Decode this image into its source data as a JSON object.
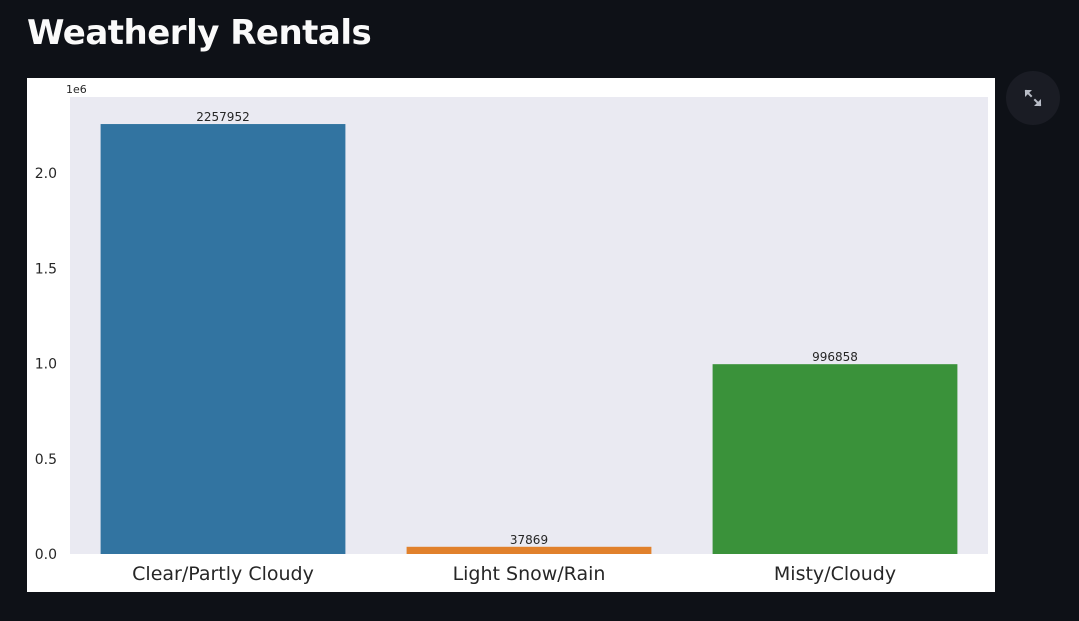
{
  "app": {
    "title": "Weatherly Rentals"
  },
  "toolbar": {
    "expand_icon": "fullscreen-expand-icon"
  },
  "chart_data": {
    "type": "bar",
    "categories": [
      "Clear/Partly Cloudy",
      "Light Snow/Rain",
      "Misty/Cloudy"
    ],
    "values": [
      2257952,
      37869,
      996858
    ],
    "data_labels": [
      "2257952",
      "37869",
      "996858"
    ],
    "colors": [
      "#3274a1",
      "#e1812c",
      "#3a923a"
    ],
    "ylim": [
      0,
      2400000
    ],
    "yticks": [
      0,
      500000,
      1000000,
      1500000,
      2000000
    ],
    "ytick_labels": [
      "0.0",
      "0.5",
      "1.0",
      "1.5",
      "2.0"
    ],
    "y_offset_label": "1e6",
    "xlabel": "",
    "ylabel": "",
    "grid": false,
    "background": "#eaeaf2"
  }
}
